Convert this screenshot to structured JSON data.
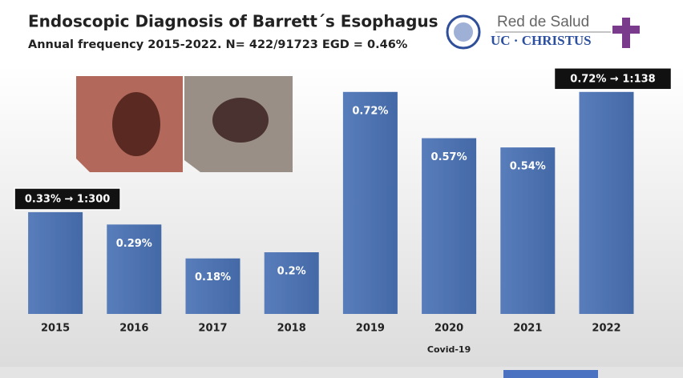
{
  "chart_data": {
    "type": "bar",
    "title": "Endoscopic Diagnosis of Barrett´s Esophagus",
    "subtitle": "Annual frequency 2015-2022. N= 422/91723 EGD = 0.46%",
    "categories": [
      "2015",
      "2016",
      "2017",
      "2018",
      "2019",
      "2020",
      "2021",
      "2022"
    ],
    "values": [
      0.33,
      0.29,
      0.18,
      0.2,
      0.72,
      0.57,
      0.54,
      0.72
    ],
    "value_labels": [
      "0.33% → 1:300",
      "0.29%",
      "0.18%",
      "0.2%",
      "0.72%",
      "0.57%",
      "0.54%",
      "0.72% → 1:138"
    ],
    "color": "#4a72b5",
    "ylim": [
      0,
      0.8
    ],
    "annotations": [
      "Covid-19"
    ]
  },
  "logo": {
    "line1": "Red de Salud",
    "line2": "UC · CHRISTUS"
  }
}
